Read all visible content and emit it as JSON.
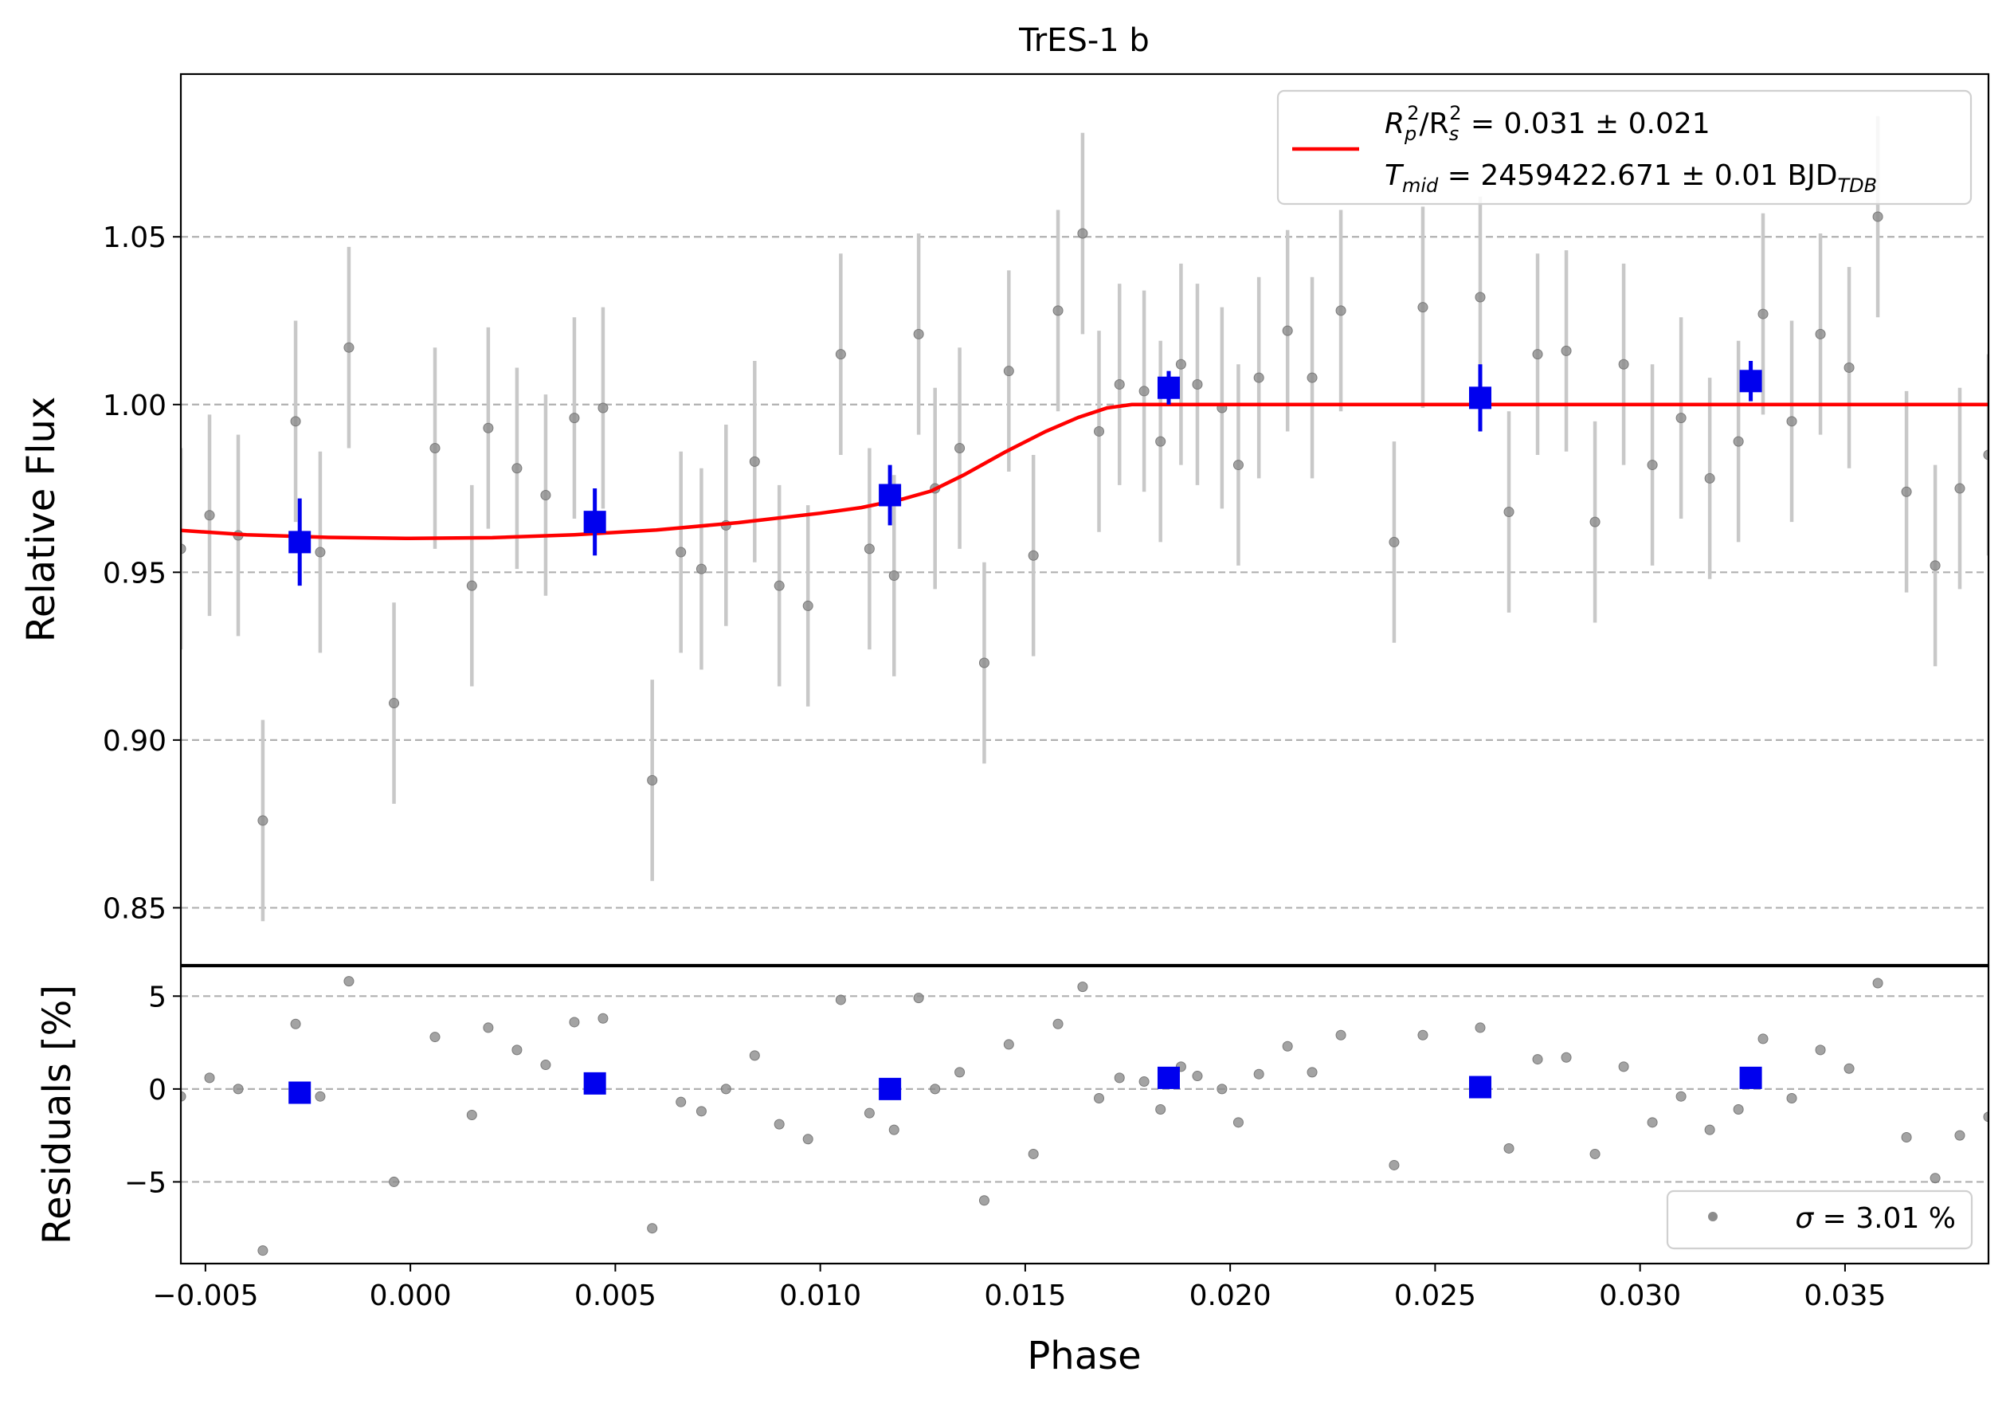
{
  "chart_data": {
    "type": "scatter",
    "title": "TrES-1 b",
    "xlabel": "Phase",
    "top_panel": {
      "ylabel": "Relative Flux",
      "xlim": [
        -0.0056,
        0.0385
      ],
      "ylim": [
        0.833,
        1.0985
      ],
      "yticks": [
        0.85,
        0.9,
        0.95,
        1.0,
        1.05
      ],
      "ytick_labels": [
        "0.85",
        "0.90",
        "0.95",
        "1.00",
        "1.05"
      ],
      "grid": "horizontal dashed",
      "legend": {
        "placement": "top-right",
        "line1_parts": [
          "R",
          "p",
          "2",
          "/R",
          "s",
          "2",
          " = 0.031 ± 0.021"
        ],
        "line2_parts": [
          "T",
          "mid",
          " = 2459422.671 ± 0.01 BJD",
          "TDB"
        ]
      },
      "raw_error": 0.03,
      "raw_points": [
        [
          -0.0056,
          0.957
        ],
        [
          -0.0049,
          0.967
        ],
        [
          -0.0042,
          0.961
        ],
        [
          -0.0036,
          0.876
        ],
        [
          -0.0028,
          0.995
        ],
        [
          -0.0022,
          0.956
        ],
        [
          -0.0015,
          1.017
        ],
        [
          -0.0004,
          0.911
        ],
        [
          0.0006,
          0.987
        ],
        [
          0.0015,
          0.946
        ],
        [
          0.0019,
          0.993
        ],
        [
          0.0026,
          0.981
        ],
        [
          0.0033,
          0.973
        ],
        [
          0.004,
          0.996
        ],
        [
          0.0047,
          0.999
        ],
        [
          0.0059,
          0.888
        ],
        [
          0.0066,
          0.956
        ],
        [
          0.0071,
          0.951
        ],
        [
          0.0077,
          0.964
        ],
        [
          0.0084,
          0.983
        ],
        [
          0.009,
          0.946
        ],
        [
          0.0097,
          0.94
        ],
        [
          0.0105,
          1.015
        ],
        [
          0.0112,
          0.957
        ],
        [
          0.0118,
          0.949
        ],
        [
          0.0124,
          1.021
        ],
        [
          0.0128,
          0.975
        ],
        [
          0.0134,
          0.987
        ],
        [
          0.014,
          0.923
        ],
        [
          0.0146,
          1.01
        ],
        [
          0.0152,
          0.955
        ],
        [
          0.0158,
          1.028
        ],
        [
          0.0164,
          1.051
        ],
        [
          0.0168,
          0.992
        ],
        [
          0.0173,
          1.006
        ],
        [
          0.0179,
          1.004
        ],
        [
          0.0183,
          0.989
        ],
        [
          0.0188,
          1.012
        ],
        [
          0.0192,
          1.006
        ],
        [
          0.0198,
          0.999
        ],
        [
          0.0202,
          0.982
        ],
        [
          0.0207,
          1.008
        ],
        [
          0.0214,
          1.022
        ],
        [
          0.022,
          1.008
        ],
        [
          0.0227,
          1.028
        ],
        [
          0.024,
          0.959
        ],
        [
          0.0247,
          1.029
        ],
        [
          0.0261,
          1.032
        ],
        [
          0.0268,
          0.968
        ],
        [
          0.0275,
          1.015
        ],
        [
          0.0282,
          1.016
        ],
        [
          0.0289,
          0.965
        ],
        [
          0.0296,
          1.012
        ],
        [
          0.0303,
          0.982
        ],
        [
          0.031,
          0.996
        ],
        [
          0.0317,
          0.978
        ],
        [
          0.0324,
          0.989
        ],
        [
          0.033,
          1.027
        ],
        [
          0.0337,
          0.995
        ],
        [
          0.0344,
          1.021
        ],
        [
          0.0351,
          1.011
        ],
        [
          0.0358,
          1.056
        ],
        [
          0.0365,
          0.974
        ],
        [
          0.0372,
          0.952
        ],
        [
          0.0378,
          0.975
        ],
        [
          0.0385,
          0.985
        ]
      ],
      "binned_points": [
        {
          "x": -0.0027,
          "y": 0.959,
          "err": 0.013
        },
        {
          "x": 0.0045,
          "y": 0.965,
          "err": 0.01
        },
        {
          "x": 0.0117,
          "y": 0.973,
          "err": 0.009
        },
        {
          "x": 0.0185,
          "y": 1.005,
          "err": 0.005
        },
        {
          "x": 0.0261,
          "y": 1.002,
          "err": 0.01
        },
        {
          "x": 0.0327,
          "y": 1.007,
          "err": 0.006
        }
      ],
      "model_curve": [
        [
          -0.0056,
          0.9625
        ],
        [
          -0.004,
          0.9612
        ],
        [
          -0.002,
          0.9604
        ],
        [
          0.0,
          0.9601
        ],
        [
          0.002,
          0.9603
        ],
        [
          0.004,
          0.9612
        ],
        [
          0.006,
          0.9626
        ],
        [
          0.008,
          0.9648
        ],
        [
          0.01,
          0.9676
        ],
        [
          0.011,
          0.9693
        ],
        [
          0.012,
          0.9718
        ],
        [
          0.0127,
          0.9742
        ],
        [
          0.0135,
          0.979
        ],
        [
          0.0145,
          0.9858
        ],
        [
          0.0155,
          0.992
        ],
        [
          0.0163,
          0.9962
        ],
        [
          0.017,
          0.999
        ],
        [
          0.0176,
          1.0
        ],
        [
          0.0385,
          1.0
        ]
      ]
    },
    "bottom_panel": {
      "ylabel": "Residuals [%]",
      "xlim": [
        -0.0056,
        0.0385
      ],
      "ylim": [
        -9.4,
        6.6
      ],
      "yticks": [
        -5,
        0,
        5
      ],
      "ytick_labels": [
        "−5",
        "0",
        "5"
      ],
      "xticks": [
        -0.005,
        0.0,
        0.005,
        0.01,
        0.015,
        0.02,
        0.025,
        0.03,
        0.035
      ],
      "xtick_labels": [
        "−0.005",
        "0.000",
        "0.005",
        "0.010",
        "0.015",
        "0.020",
        "0.025",
        "0.030",
        "0.035"
      ],
      "grid": "horizontal dashed",
      "legend": {
        "placement": "bottom-right",
        "parts": [
          "σ",
          " = 3.01 %"
        ]
      },
      "raw_points": [
        [
          -0.0056,
          -0.4
        ],
        [
          -0.0049,
          0.6
        ],
        [
          -0.0042,
          0.0
        ],
        [
          -0.0036,
          -8.7
        ],
        [
          -0.0028,
          3.5
        ],
        [
          -0.0022,
          -0.4
        ],
        [
          -0.0015,
          5.8
        ],
        [
          -0.0004,
          -5.0
        ],
        [
          0.0006,
          2.8
        ],
        [
          0.0015,
          -1.4
        ],
        [
          0.0019,
          3.3
        ],
        [
          0.0026,
          2.1
        ],
        [
          0.0033,
          1.3
        ],
        [
          0.004,
          3.6
        ],
        [
          0.0047,
          3.8
        ],
        [
          0.0059,
          -7.5
        ],
        [
          0.0066,
          -0.7
        ],
        [
          0.0071,
          -1.2
        ],
        [
          0.0077,
          0.0
        ],
        [
          0.0084,
          1.8
        ],
        [
          0.009,
          -1.9
        ],
        [
          0.0097,
          -2.7
        ],
        [
          0.0105,
          4.8
        ],
        [
          0.0112,
          -1.3
        ],
        [
          0.0118,
          -2.2
        ],
        [
          0.0124,
          4.9
        ],
        [
          0.0128,
          0.0
        ],
        [
          0.0134,
          0.9
        ],
        [
          0.014,
          -6.0
        ],
        [
          0.0146,
          2.4
        ],
        [
          0.0152,
          -3.5
        ],
        [
          0.0158,
          3.5
        ],
        [
          0.0164,
          5.5
        ],
        [
          0.0168,
          -0.5
        ],
        [
          0.0173,
          0.6
        ],
        [
          0.0179,
          0.4
        ],
        [
          0.0183,
          -1.1
        ],
        [
          0.0188,
          1.2
        ],
        [
          0.0192,
          0.7
        ],
        [
          0.0198,
          0.0
        ],
        [
          0.0202,
          -1.8
        ],
        [
          0.0207,
          0.8
        ],
        [
          0.0214,
          2.3
        ],
        [
          0.022,
          0.9
        ],
        [
          0.0227,
          2.9
        ],
        [
          0.024,
          -4.1
        ],
        [
          0.0247,
          2.9
        ],
        [
          0.0261,
          3.3
        ],
        [
          0.0268,
          -3.2
        ],
        [
          0.0275,
          1.6
        ],
        [
          0.0282,
          1.7
        ],
        [
          0.0289,
          -3.5
        ],
        [
          0.0296,
          1.2
        ],
        [
          0.0303,
          -1.8
        ],
        [
          0.031,
          -0.4
        ],
        [
          0.0317,
          -2.2
        ],
        [
          0.0324,
          -1.1
        ],
        [
          0.033,
          2.7
        ],
        [
          0.0337,
          -0.5
        ],
        [
          0.0344,
          2.1
        ],
        [
          0.0351,
          1.1
        ],
        [
          0.0358,
          5.7
        ],
        [
          0.0365,
          -2.6
        ],
        [
          0.0372,
          -4.8
        ],
        [
          0.0378,
          -2.5
        ],
        [
          0.0385,
          -1.5
        ]
      ],
      "binned_points": [
        {
          "x": -0.0027,
          "y": -0.2
        },
        {
          "x": 0.0045,
          "y": 0.3
        },
        {
          "x": 0.0117,
          "y": 0.0
        },
        {
          "x": 0.0185,
          "y": 0.6
        },
        {
          "x": 0.0261,
          "y": 0.1
        },
        {
          "x": 0.0327,
          "y": 0.6
        }
      ]
    },
    "colors": {
      "model": "#ff0000",
      "binned": "#0000ee",
      "raw_points": "#8c8c8c",
      "raw_errorbars": "#c8c8c8",
      "grid": "#b0b0b0"
    }
  }
}
